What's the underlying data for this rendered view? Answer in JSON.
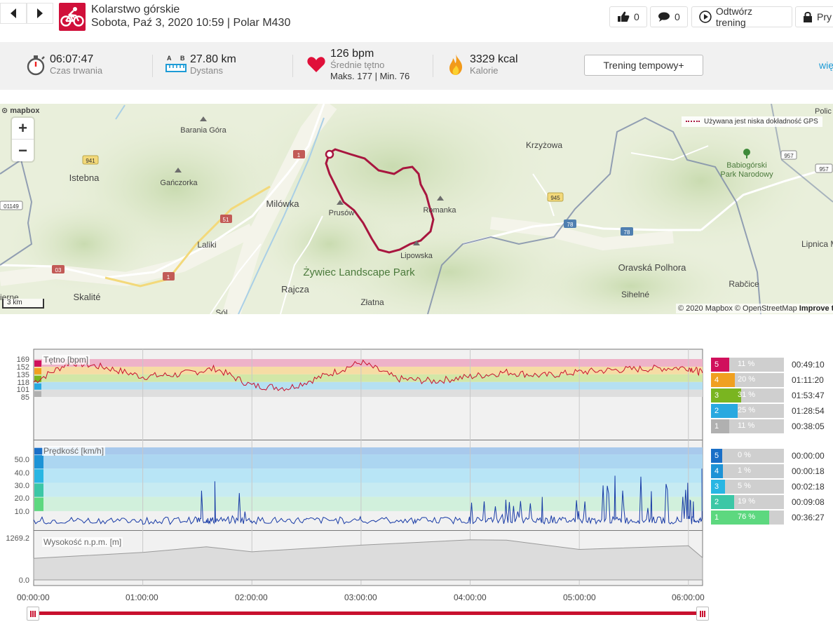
{
  "header": {
    "sport": "Kolarstwo górskie",
    "datetime_device": "Sobota, Paź 3, 2020 10:59 | Polar M430",
    "likes": "0",
    "comments": "0",
    "replay_label": "Odtwórz trening",
    "private_label": "Pry"
  },
  "summary": {
    "duration": {
      "value": "06:07:47",
      "label": "Czas trwania"
    },
    "distance": {
      "value": "27.80 km",
      "label": "Dystans",
      "icon_a": "A",
      "icon_b": "B"
    },
    "heart_rate": {
      "value": "126 bpm",
      "label": "Średnie tętno",
      "detail": "Maks. 177  |  Min. 76"
    },
    "calories": {
      "value": "3329 kcal",
      "label": "Kalorie"
    },
    "tempo_button": "Trening tempowy+",
    "more_link": "więcej"
  },
  "map": {
    "logo": "mapbox",
    "zoom_in": "+",
    "zoom_out": "−",
    "gps_note": "Używana jest niska dokładność GPS",
    "scale": "3 km",
    "attribution": "© 2020 Mapbox © OpenStreetMap",
    "improve": "Improve t",
    "labels": {
      "barania_gora": "Barania Góra",
      "istebna": "Istebna",
      "ganczorka": "Gańczorka",
      "milowka": "Milówka",
      "laliki": "Laliki",
      "skalite": "Skalité",
      "sierne": "ierne",
      "sol": "Sól",
      "rajcza": "Rajcza",
      "zlatna": "Złatna",
      "zywiec": "Żywiec Landscape Park",
      "prusow": "Prusów",
      "romanka": "Romanka",
      "lipowska": "Lipowska",
      "krzyzowa": "Krzyżowa",
      "oravska": "Oravská Polhora",
      "sihelne": "Sihelné",
      "rabcice": "Rabčice",
      "babiogorski1": "Babiogórski",
      "babiogorski2": "Park Narodowy",
      "lipnica": "Lipnica M",
      "polic": "Polic",
      "r941": "941",
      "r1a": "1",
      "r01149": "01149",
      "r51": "51",
      "r03": "03",
      "r1b": "1",
      "r945": "945",
      "r78a": "78",
      "r78b": "78",
      "r957a": "957",
      "r957b": "957"
    }
  },
  "colors": {
    "accent": "#c8102e",
    "hr_zone5": "#d0105c",
    "hr_zone4": "#f0a020",
    "hr_zone3": "#7ab520",
    "hr_zone2": "#29a9e0",
    "hr_zone1": "#b0b0b0",
    "sp_zone5": "#1a6fc7",
    "sp_zone4": "#1d93d6",
    "sp_zone3": "#28b6e3",
    "sp_zone2": "#3cc7a6",
    "sp_zone1": "#5dd87f"
  },
  "charts": {
    "heart_rate": {
      "title": "Tętno [bpm]",
      "yticks": [
        "169",
        "152",
        "135",
        "118",
        "101",
        "85"
      ],
      "zones": [
        {
          "num": "5",
          "pct": "11 %",
          "fraction": 0.11,
          "time": "00:49:10"
        },
        {
          "num": "4",
          "pct": "20 %",
          "fraction": 0.2,
          "time": "01:11:20"
        },
        {
          "num": "3",
          "pct": "31 %",
          "fraction": 0.31,
          "time": "01:53:47"
        },
        {
          "num": "2",
          "pct": "25 %",
          "fraction": 0.25,
          "time": "01:28:54"
        },
        {
          "num": "1",
          "pct": "11 %",
          "fraction": 0.11,
          "time": "00:38:05"
        }
      ]
    },
    "speed": {
      "title": "Prędkość [km/h]",
      "yticks": [
        "50.0",
        "40.0",
        "30.0",
        "20.0",
        "10.0"
      ],
      "zones": [
        {
          "num": "5",
          "pct": "0 %",
          "fraction": 0.0,
          "time": "00:00:00"
        },
        {
          "num": "4",
          "pct": "1 %",
          "fraction": 0.01,
          "time": "00:00:18"
        },
        {
          "num": "3",
          "pct": "5 %",
          "fraction": 0.05,
          "time": "00:02:18"
        },
        {
          "num": "2",
          "pct": "19 %",
          "fraction": 0.19,
          "time": "00:09:08"
        },
        {
          "num": "1",
          "pct": "76 %",
          "fraction": 0.76,
          "time": "00:36:27"
        }
      ]
    },
    "altitude": {
      "title": "Wysokość n.p.m. [m]",
      "yticks": [
        "1269.2",
        "0.0"
      ]
    },
    "xticks": [
      "00:00:00",
      "01:00:00",
      "02:00:00",
      "03:00:00",
      "04:00:00",
      "05:00:00",
      "06:00:00"
    ]
  },
  "chart_data": [
    {
      "type": "line",
      "title": "Tętno [bpm]",
      "x": [
        "00:00:00",
        "00:20:00",
        "00:40:00",
        "01:00:00",
        "01:20:00",
        "01:40:00",
        "02:00:00",
        "02:20:00",
        "02:40:00",
        "03:00:00",
        "03:20:00",
        "03:40:00",
        "04:00:00",
        "04:20:00",
        "04:40:00",
        "05:00:00",
        "05:20:00",
        "05:40:00",
        "06:00:00",
        "06:07:47"
      ],
      "values": [
        118,
        162,
        150,
        130,
        135,
        148,
        110,
        105,
        132,
        162,
        125,
        120,
        130,
        140,
        132,
        140,
        145,
        148,
        150,
        138
      ],
      "ylim": [
        85,
        169
      ]
    },
    {
      "type": "line",
      "title": "Prędkość [km/h]",
      "x": [
        "00:00:00",
        "00:30:00",
        "01:00:00",
        "01:30:00",
        "01:40:00",
        "02:00:00",
        "02:30:00",
        "03:00:00",
        "03:30:00",
        "04:00:00",
        "04:20:00",
        "04:40:00",
        "05:00:00",
        "05:20:00",
        "05:40:00",
        "06:00:00",
        "06:07:47"
      ],
      "values": [
        3,
        4,
        3,
        5,
        31,
        3,
        4,
        6,
        4,
        6,
        18,
        20,
        10,
        35,
        24,
        30,
        40
      ],
      "ylim": [
        0,
        55
      ]
    },
    {
      "type": "area",
      "title": "Wysokość n.p.m. [m]",
      "x": [
        "00:00:00",
        "01:00:00",
        "01:35:00",
        "02:00:00",
        "03:00:00",
        "04:00:00",
        "04:20:00",
        "05:00:00",
        "06:00:00",
        "06:07:47"
      ],
      "values": [
        650,
        830,
        1000,
        850,
        1050,
        1210,
        1200,
        920,
        1030,
        670
      ],
      "ylim": [
        0,
        1269.2
      ]
    }
  ]
}
